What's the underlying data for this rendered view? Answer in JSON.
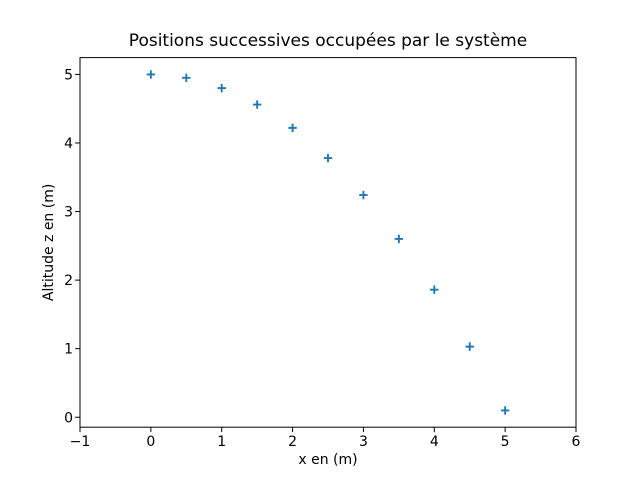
{
  "figure": {
    "background": "#ffffff",
    "axes_edge_color": "#000000",
    "text_color": "#000000"
  },
  "chart_data": {
    "type": "scatter",
    "title": "Positions successives occupées par le système",
    "xlabel": "x en (m)",
    "ylabel": "Altitude z en (m)",
    "marker": "plus",
    "marker_color": "#1f77b4",
    "grid": false,
    "legend": null,
    "x": [
      0,
      0.5,
      1,
      1.5,
      2,
      2.5,
      3,
      3.5,
      4,
      4.5,
      5
    ],
    "z": [
      5.0,
      4.95,
      4.8,
      4.56,
      4.22,
      3.78,
      3.24,
      2.6,
      1.86,
      1.03,
      0.1
    ],
    "xlim": [
      -1,
      6
    ],
    "ylim": [
      -0.145,
      5.245
    ],
    "x_tick_values": [
      -1,
      0,
      1,
      2,
      3,
      4,
      5,
      6
    ],
    "x_tick_labels": [
      "−1",
      "0",
      "1",
      "2",
      "3",
      "4",
      "5",
      "6"
    ],
    "y_tick_values": [
      0,
      1,
      2,
      3,
      4,
      5
    ],
    "y_tick_labels": [
      "0",
      "1",
      "2",
      "3",
      "4",
      "5"
    ]
  }
}
